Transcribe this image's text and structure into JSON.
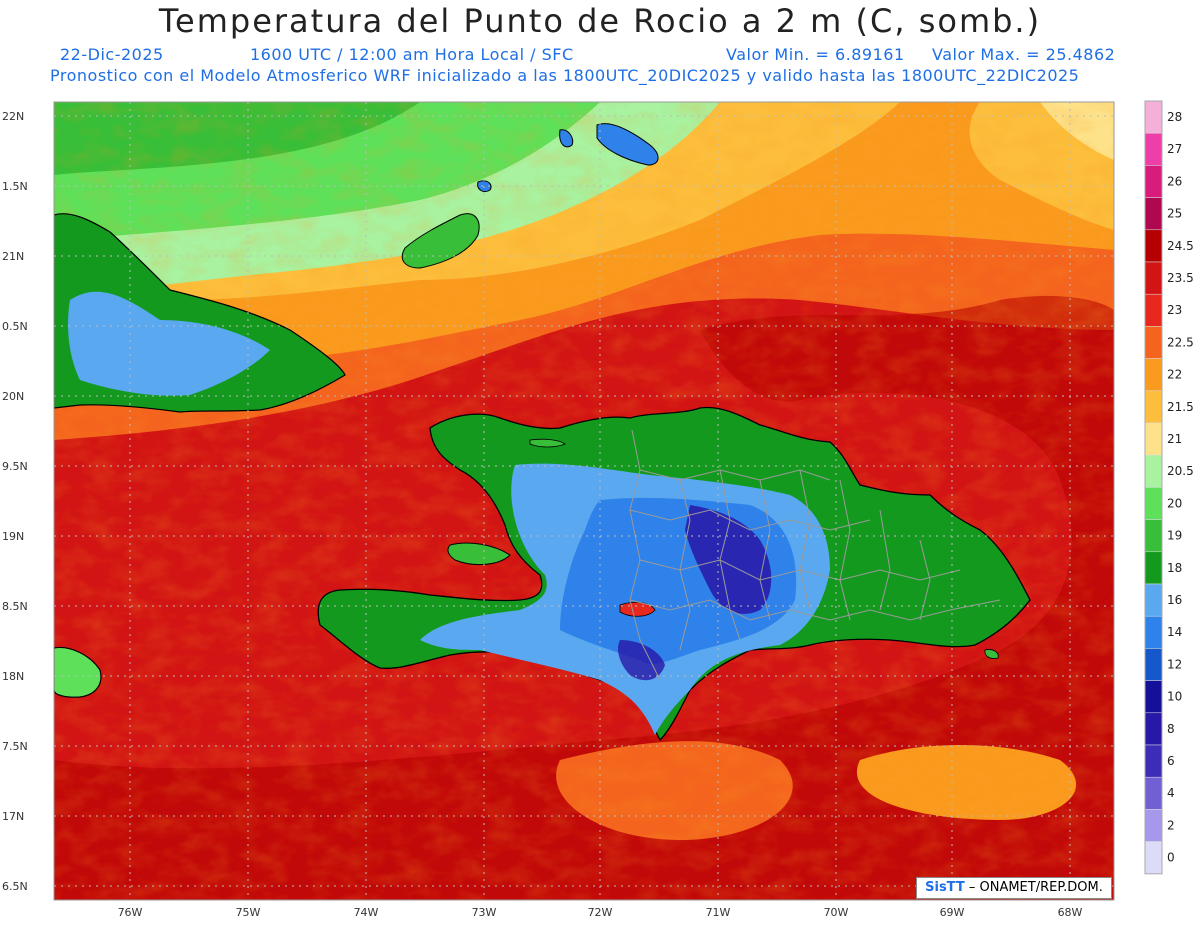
{
  "header": {
    "title": "Temperatura del Punto de Rocio a 2 m (C, somb.)",
    "date": "22-Dic-2025",
    "time": "1600 UTC / 12:00 am Hora Local / SFC",
    "min": "Valor Min. = 6.89161",
    "max": "Valor Max. = 25.4862",
    "forecast": "Pronostico con el Modelo Atmosferico WRF inicializado a las 1800UTC_20DIC2025 y valido hasta las  1800UTC_22DIC2025"
  },
  "axes": {
    "lat_labels": [
      "22N",
      "1.5N",
      "21N",
      "0.5N",
      "20N",
      "9.5N",
      "19N",
      "8.5N",
      "18N",
      "7.5N",
      "17N",
      "6.5N"
    ],
    "lon_labels": [
      "76W",
      "75W",
      "74W",
      "73W",
      "72W",
      "71W",
      "70W",
      "69W",
      "68W"
    ]
  },
  "colorbar": {
    "levels": [
      "28",
      "27",
      "26",
      "25",
      "24.5",
      "23.5",
      "23",
      "22.5",
      "22",
      "21.5",
      "21",
      "20.5",
      "20",
      "19",
      "18",
      "16",
      "14",
      "12",
      "10",
      "8",
      "6",
      "4",
      "2",
      "0"
    ],
    "colors": [
      "#f4b0d8",
      "#ee3fa8",
      "#d81b7c",
      "#b0084e",
      "#b40000",
      "#d21414",
      "#e8281e",
      "#f4641e",
      "#fa9a1e",
      "#fcbe3c",
      "#fde28a",
      "#a8f2a0",
      "#5ee05a",
      "#38be38",
      "#139a1e",
      "#5aa8f0",
      "#2e82ea",
      "#1458cc",
      "#14109a",
      "#2818a8",
      "#3c2cb8",
      "#7060d4",
      "#a898ec",
      "#dcdcf8"
    ]
  },
  "credit": {
    "logo": "SisTT",
    "text": " – ONAMET/REP.DOM."
  },
  "colors": {
    "sea_hot": "#d21414",
    "land_cool": "#2e82ea",
    "accent": "#1e6fe6"
  }
}
